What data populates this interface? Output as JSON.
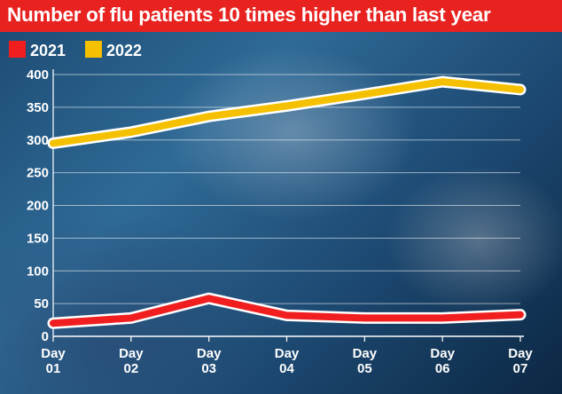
{
  "title": "Number of flu patients 10 times higher than last year",
  "chart_data": {
    "type": "line",
    "title": "Number of flu patients 10 times higher than last year",
    "categories": [
      [
        "Day",
        "01"
      ],
      [
        "Day",
        "02"
      ],
      [
        "Day",
        "03"
      ],
      [
        "Day",
        "04"
      ],
      [
        "Day",
        "05"
      ],
      [
        "Day",
        "06"
      ],
      [
        "Day",
        "07"
      ]
    ],
    "series": [
      {
        "name": "2021",
        "color": "#f01e1e",
        "values": [
          20,
          28,
          58,
          32,
          28,
          28,
          33
        ]
      },
      {
        "name": "2022",
        "color": "#f5c000",
        "values": [
          295,
          312,
          336,
          352,
          370,
          389,
          377
        ]
      }
    ],
    "yticks": [
      0,
      50,
      100,
      150,
      200,
      250,
      300,
      350,
      400
    ],
    "ylim": [
      0,
      400
    ],
    "grid": true,
    "legend": "top-left",
    "xlabel": "",
    "ylabel": ""
  }
}
